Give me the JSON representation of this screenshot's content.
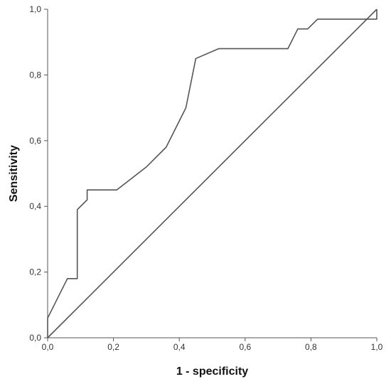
{
  "chart_data": {
    "type": "line",
    "title": "",
    "xlabel": "1 - specificity",
    "ylabel": "Sensitivity",
    "xlim": [
      0.0,
      1.0
    ],
    "ylim": [
      0.0,
      1.0
    ],
    "x_ticks": [
      "0,0",
      "0,2",
      "0,4",
      "0,6",
      "0,8",
      "1,0"
    ],
    "y_ticks": [
      "0,0",
      "0,2",
      "0,4",
      "0,6",
      "0,8",
      "1,0"
    ],
    "x_tick_values": [
      0.0,
      0.2,
      0.4,
      0.6,
      0.8,
      1.0
    ],
    "y_tick_values": [
      0.0,
      0.2,
      0.4,
      0.6,
      0.8,
      1.0
    ],
    "grid": false,
    "legend": "none",
    "line_color": "#555555",
    "series": [
      {
        "x": [
          0.0,
          0.0,
          0.06,
          0.09,
          0.09,
          0.12,
          0.12,
          0.21,
          0.3,
          0.36,
          0.42,
          0.45,
          0.52,
          0.73,
          0.76,
          0.79,
          0.82,
          1.0,
          1.0
        ],
        "y": [
          0.0,
          0.06,
          0.18,
          0.18,
          0.39,
          0.42,
          0.45,
          0.45,
          0.52,
          0.58,
          0.7,
          0.85,
          0.88,
          0.88,
          0.94,
          0.94,
          0.97,
          0.97,
          1.0
        ]
      },
      {
        "x": [
          0.0,
          1.0
        ],
        "y": [
          0.0,
          1.0
        ]
      }
    ]
  }
}
